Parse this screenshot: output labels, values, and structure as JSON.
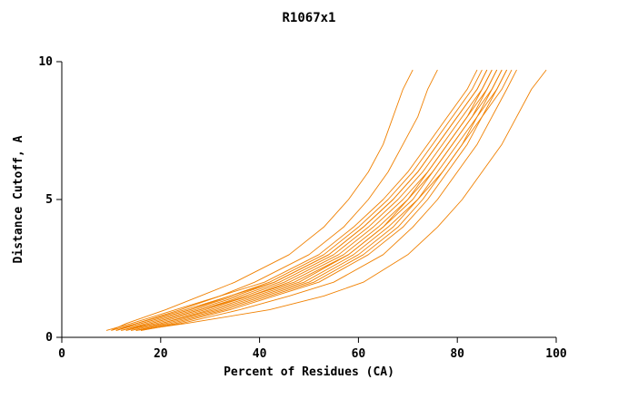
{
  "chart_data": {
    "type": "line",
    "title": "R1067x1",
    "xlabel": "Percent of Residues (CA)",
    "ylabel": "Distance Cutoff, A",
    "xlim": [
      0,
      100
    ],
    "ylim": [
      0,
      10
    ],
    "xticks": [
      0,
      20,
      40,
      60,
      80,
      100
    ],
    "yticks": [
      0,
      5,
      10
    ],
    "grid": false,
    "legend_position": "none",
    "line_color": "#F08000",
    "axis_color": "#000000",
    "series": [
      {
        "points": [
          [
            10,
            0.25
          ],
          [
            13,
            0.5
          ],
          [
            21,
            1
          ],
          [
            28,
            1.5
          ],
          [
            35,
            2
          ],
          [
            46,
            3
          ],
          [
            53,
            4
          ],
          [
            58,
            5
          ],
          [
            62,
            6
          ],
          [
            65,
            7
          ],
          [
            67,
            8
          ],
          [
            69,
            9
          ],
          [
            71,
            9.7
          ]
        ]
      },
      {
        "points": [
          [
            11,
            0.25
          ],
          [
            15,
            0.5
          ],
          [
            24,
            1
          ],
          [
            32,
            1.5
          ],
          [
            39,
            2
          ],
          [
            50,
            3
          ],
          [
            57,
            4
          ],
          [
            62,
            5
          ],
          [
            66,
            6
          ],
          [
            69,
            7
          ],
          [
            72,
            8
          ],
          [
            74,
            9
          ],
          [
            76,
            9.7
          ]
        ]
      },
      {
        "points": [
          [
            9,
            0.25
          ],
          [
            14,
            0.5
          ],
          [
            23,
            1
          ],
          [
            32,
            1.5
          ],
          [
            41,
            2
          ],
          [
            52,
            3
          ],
          [
            59,
            4
          ],
          [
            65,
            5
          ],
          [
            70,
            6
          ],
          [
            74,
            7
          ],
          [
            78,
            8
          ],
          [
            82,
            9
          ],
          [
            84,
            9.7
          ]
        ]
      },
      {
        "points": [
          [
            10,
            0.25
          ],
          [
            15,
            0.5
          ],
          [
            25,
            1
          ],
          [
            34,
            1.5
          ],
          [
            42,
            2
          ],
          [
            53,
            3
          ],
          [
            60,
            4
          ],
          [
            66,
            5
          ],
          [
            71,
            6
          ],
          [
            75,
            7
          ],
          [
            79,
            8
          ],
          [
            83,
            9
          ],
          [
            85,
            9.7
          ]
        ]
      },
      {
        "points": [
          [
            11,
            0.25
          ],
          [
            16,
            0.5
          ],
          [
            26,
            1
          ],
          [
            35,
            1.5
          ],
          [
            43,
            2
          ],
          [
            54,
            3
          ],
          [
            61,
            4
          ],
          [
            67,
            5
          ],
          [
            72,
            6
          ],
          [
            76,
            7
          ],
          [
            80,
            8
          ],
          [
            84,
            9
          ],
          [
            86,
            9.7
          ]
        ]
      },
      {
        "points": [
          [
            12,
            0.25
          ],
          [
            17,
            0.5
          ],
          [
            27,
            1
          ],
          [
            36,
            1.5
          ],
          [
            44,
            2
          ],
          [
            55,
            3
          ],
          [
            62,
            4
          ],
          [
            68,
            5
          ],
          [
            73,
            6
          ],
          [
            77,
            7
          ],
          [
            81,
            8
          ],
          [
            85,
            9
          ],
          [
            87,
            9.7
          ]
        ]
      },
      {
        "points": [
          [
            12,
            0.25
          ],
          [
            18,
            0.5
          ],
          [
            28,
            1
          ],
          [
            37,
            1.5
          ],
          [
            45,
            2
          ],
          [
            56,
            3
          ],
          [
            63,
            4
          ],
          [
            69,
            5
          ],
          [
            74,
            6
          ],
          [
            78,
            7
          ],
          [
            82,
            8
          ],
          [
            85,
            9
          ],
          [
            87,
            9.7
          ]
        ]
      },
      {
        "points": [
          [
            13,
            0.25
          ],
          [
            18,
            0.5
          ],
          [
            28,
            1
          ],
          [
            38,
            1.5
          ],
          [
            46,
            2
          ],
          [
            57,
            3
          ],
          [
            64,
            4
          ],
          [
            70,
            5
          ],
          [
            74,
            6
          ],
          [
            78,
            7
          ],
          [
            82,
            8
          ],
          [
            86,
            9
          ],
          [
            88,
            9.7
          ]
        ]
      },
      {
        "points": [
          [
            13,
            0.25
          ],
          [
            19,
            0.5
          ],
          [
            29,
            1
          ],
          [
            38,
            1.5
          ],
          [
            47,
            2
          ],
          [
            58,
            3
          ],
          [
            65,
            4
          ],
          [
            70,
            5
          ],
          [
            75,
            6
          ],
          [
            79,
            7
          ],
          [
            83,
            8
          ],
          [
            86,
            9
          ],
          [
            88,
            9.7
          ]
        ]
      },
      {
        "points": [
          [
            14,
            0.25
          ],
          [
            20,
            0.5
          ],
          [
            30,
            1
          ],
          [
            39,
            1.5
          ],
          [
            48,
            2
          ],
          [
            58,
            3
          ],
          [
            65,
            4
          ],
          [
            71,
            5
          ],
          [
            75,
            6
          ],
          [
            79,
            7
          ],
          [
            83,
            8
          ],
          [
            87,
            9
          ],
          [
            89,
            9.7
          ]
        ]
      },
      {
        "points": [
          [
            14,
            0.25
          ],
          [
            20,
            0.5
          ],
          [
            31,
            1
          ],
          [
            40,
            1.5
          ],
          [
            49,
            2
          ],
          [
            59,
            3
          ],
          [
            66,
            4
          ],
          [
            72,
            5
          ],
          [
            76,
            6
          ],
          [
            80,
            7
          ],
          [
            84,
            8
          ],
          [
            87,
            9
          ],
          [
            89,
            9.7
          ]
        ]
      },
      {
        "points": [
          [
            15,
            0.25
          ],
          [
            21,
            0.5
          ],
          [
            32,
            1
          ],
          [
            41,
            1.5
          ],
          [
            50,
            2
          ],
          [
            60,
            3
          ],
          [
            67,
            4
          ],
          [
            72,
            5
          ],
          [
            77,
            6
          ],
          [
            81,
            7
          ],
          [
            84,
            8
          ],
          [
            88,
            9
          ],
          [
            90,
            9.7
          ]
        ]
      },
      {
        "points": [
          [
            15,
            0.25
          ],
          [
            22,
            0.5
          ],
          [
            33,
            1
          ],
          [
            42,
            1.5
          ],
          [
            51,
            2
          ],
          [
            61,
            3
          ],
          [
            68,
            4
          ],
          [
            73,
            5
          ],
          [
            77,
            6
          ],
          [
            81,
            7
          ],
          [
            85,
            8
          ],
          [
            88,
            9
          ],
          [
            90,
            9.7
          ]
        ]
      },
      {
        "points": [
          [
            16,
            0.25
          ],
          [
            23,
            0.5
          ],
          [
            34,
            1
          ],
          [
            43,
            1.5
          ],
          [
            52,
            2
          ],
          [
            62,
            3
          ],
          [
            69,
            4
          ],
          [
            74,
            5
          ],
          [
            78,
            6
          ],
          [
            82,
            7
          ],
          [
            85,
            8
          ],
          [
            89,
            9
          ],
          [
            91,
            9.7
          ]
        ]
      },
      {
        "points": [
          [
            16,
            0.25
          ],
          [
            24,
            0.5
          ],
          [
            36,
            1
          ],
          [
            46,
            1.5
          ],
          [
            55,
            2
          ],
          [
            65,
            3
          ],
          [
            71,
            4
          ],
          [
            76,
            5
          ],
          [
            80,
            6
          ],
          [
            84,
            7
          ],
          [
            87,
            8
          ],
          [
            90,
            9
          ],
          [
            92,
            9.7
          ]
        ]
      },
      {
        "points": [
          [
            15,
            0.25
          ],
          [
            25,
            0.5
          ],
          [
            42,
            1
          ],
          [
            53,
            1.5
          ],
          [
            61,
            2
          ],
          [
            70,
            3
          ],
          [
            76,
            4
          ],
          [
            81,
            5
          ],
          [
            85,
            6
          ],
          [
            89,
            7
          ],
          [
            92,
            8
          ],
          [
            95,
            9
          ],
          [
            98,
            9.7
          ]
        ]
      },
      {
        "points": [
          [
            11,
            0.25
          ],
          [
            16,
            0.5
          ],
          [
            26,
            1
          ],
          [
            34,
            1.5
          ],
          [
            43,
            2
          ],
          [
            54,
            3
          ],
          [
            61,
            4
          ],
          [
            67,
            5
          ],
          [
            72,
            6
          ],
          [
            76,
            7
          ],
          [
            80,
            8
          ],
          [
            84,
            9
          ],
          [
            86,
            9.7
          ]
        ]
      }
    ]
  }
}
